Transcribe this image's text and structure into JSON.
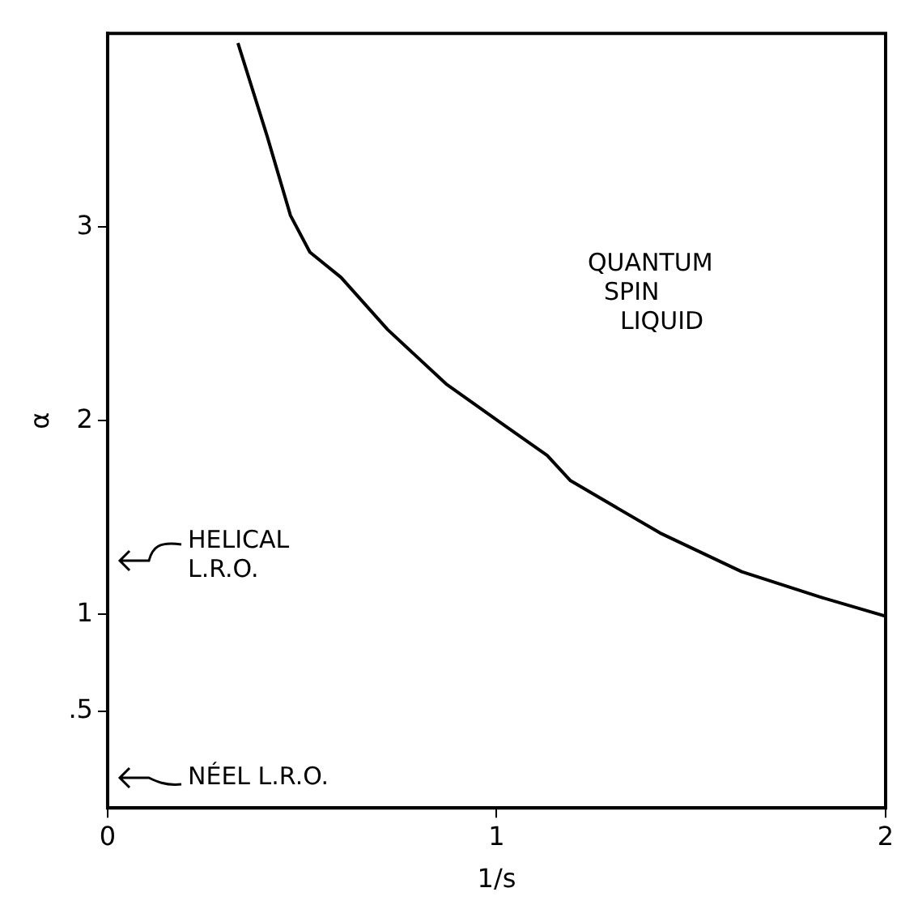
{
  "chart_data": {
    "type": "line",
    "xlabel": "1/s",
    "ylabel": "α",
    "series": [
      {
        "color": "#000000",
        "x": [
          0.335,
          0.41,
          0.47,
          0.52,
          0.6,
          0.72,
          0.87,
          1.01,
          1.13,
          1.19,
          1.42,
          1.63,
          1.83,
          2.0
        ],
        "values": [
          3.95,
          3.47,
          3.06,
          2.87,
          2.74,
          2.47,
          2.19,
          1.99,
          1.82,
          1.69,
          1.42,
          1.22,
          1.09,
          0.99
        ]
      }
    ],
    "xlim": [
      0,
      2
    ],
    "ylim": [
      0,
      4
    ],
    "xticks": [
      0,
      1,
      2
    ],
    "yticks": [
      {
        "value": 0.5,
        "label": ".5"
      },
      1,
      2,
      3
    ],
    "grid": false,
    "legend": false,
    "marker": "none",
    "line_style": "solid",
    "annotations": [
      "QUANTUM\nSPIN\nLIQUID",
      "HELICAL\nL.R.O.",
      "NÉEL L.R.O."
    ]
  }
}
